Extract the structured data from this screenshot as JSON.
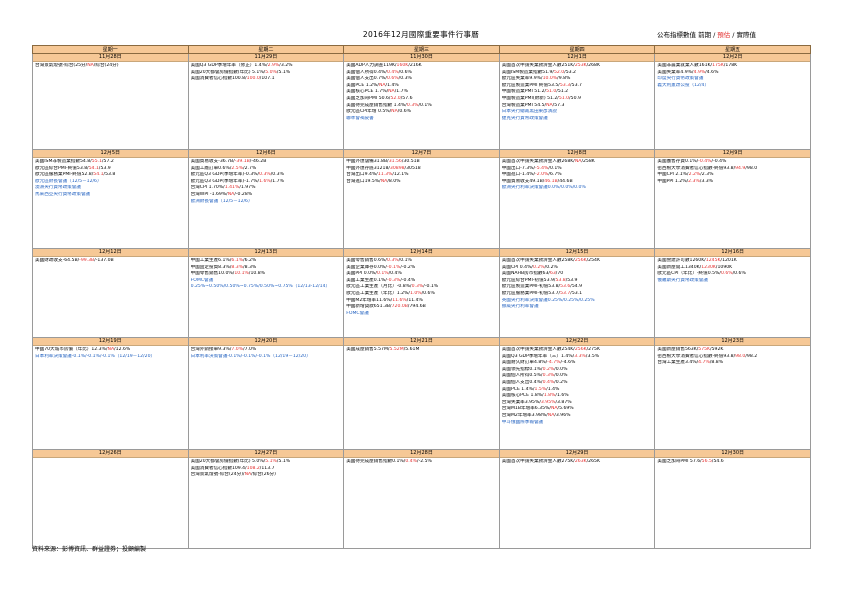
{
  "title": "2016年12月國際重要事件行事曆",
  "legend": {
    "prev": "公布指標數值 前期",
    "forecast": "預估",
    "actual": "實際值"
  },
  "weekdays": [
    "星期一",
    "星期二",
    "星期三",
    "星期四",
    "星期五"
  ],
  "weeks": [
    {
      "days": [
        {
          "date": "11月28日",
          "events": [
            [
              "台灣景氣燈號-綜合(25分/",
              {
                "f": "NA"
              },
              "/綜合(24分)"
            ]
          ]
        },
        {
          "date": "11月29日",
          "events": [
            [
              "美國Q3 GDP季增年率（修正）1.4%/",
              {
                "f": "2.9%"
              },
              "/3.2%"
            ],
            [
              "美國20大都會房價指數(年比) 5.1%/",
              {
                "f": "5.0%"
              },
              "/5.1%"
            ],
            [
              "美國消費者信心指數100.8/",
              {
                "f": "100.0"
              },
              "/107.1"
            ]
          ]
        },
        {
          "date": "11月30日",
          "events": [
            [
              "美國ADP人力調查119K/",
              {
                "f": "160K"
              },
              "/216K"
            ],
            [
              "美國個人所得0.4%/",
              {
                "f": "0.4%"
              },
              "/0.6%"
            ],
            [
              "美國個人支出0.7%/",
              {
                "f": "0.6%"
              },
              "/0.3%"
            ],
            [
              "美國PCE 1.2%/",
              {
                "f": "NA"
              },
              "/1.4%"
            ],
            [
              "美國核心PCE 1.7%/",
              {
                "f": "NA"
              },
              "/1.7%"
            ],
            [
              "美國芝加哥PMI 50.6/",
              {
                "f": "52.0"
              },
              "/57.6"
            ],
            [
              "美國待完成屋銷售指數 1.4%/",
              {
                "f": "0.3%"
              },
              "/0.1%"
            ],
            [
              "歐元區CPI年增 0.5%/",
              {
                "f": "NA"
              },
              "/0.6%"
            ],
            {
              "fx": "聯準會褐皮書"
            }
          ]
        },
        {
          "date": "12月1日",
          "events": [
            [
              "美國首次申請失業救濟金人數251K/",
              {
                "f": "253K"
              },
              "/268K"
            ],
            [
              "美國ISM製造業指數51.9/",
              {
                "f": "52.0"
              },
              "/53.2"
            ],
            [
              "歐元區失業率9.9%/",
              {
                "f": "10.0%"
              },
              "/9.8%"
            ],
            [
              "歐元區製造業PMI 終值53.5/",
              {
                "f": "53.3"
              },
              "/53.7"
            ],
            [
              "中國製造業PMI 51.2/",
              {
                "f": "51.0"
              },
              "/51.2"
            ],
            [
              "中國製造業PMI(財新) 51.2/",
              {
                "f": "51.0"
              },
              "/50.9"
            ],
            [
              "台灣製造業PMI 54.5/",
              {
                "f": "NA"
              },
              "/57.3"
            ],
            {
              "fx": "日本央行總裁黑田東彥演說"
            },
            {
              "fx": "捷克央行貨幣政策會議"
            }
          ]
        },
        {
          "date": "12月2日",
          "events": [
            [
              "美國非農業就業人數161K/",
              {
                "f": "175K"
              },
              "/178K"
            ],
            [
              "美國失業率4.9%/",
              {
                "f": "4.9%"
              },
              "/4.6%"
            ],
            {
              "fx": "印度央行貨幣政策會議"
            },
            {
              "fx": "義大利憲改公投（12/4）"
            }
          ]
        }
      ]
    },
    {
      "days": [
        {
          "date": "12月5日",
          "events": [
            [
              "美國ISM非製造業指數54.8/",
              {
                "f": "55.1"
              },
              "/57.2"
            ],
            [
              "歐元區綜合PMI-終值53.8/",
              {
                "f": "54.1"
              },
              "/53.9"
            ],
            [
              "歐元區服務業PMI-終值52.8/",
              {
                "f": "54.1"
              },
              "/53.8"
            ],
            {
              "fx": "歐元區財長會議（12/5－12/6）"
            },
            {
              "fx": "澳洲央行貨幣政策會議"
            },
            {
              "fx": "馬來西亞央行貨幣政策會議"
            }
          ]
        },
        {
          "date": "12月6日",
          "events": [
            [
              "美國貿易收支-36.7B/",
              {
                "f": "-39.1B"
              },
              "/-46.2B"
            ],
            [
              "美國工廠訂單0.6%/",
              {
                "f": "2.5%"
              },
              "/2.7%"
            ],
            [
              "歐元區Q3 GDP(季增年率)-0.3%/",
              {
                "f": "0.3%"
              },
              "/0.3%"
            ],
            [
              "歐元區Q3 GDP(季增年率)-1.7%/",
              {
                "f": "1.6%"
              },
              "/1.7%"
            ],
            [
              "台灣CPI 1.70%/",
              {
                "f": "1.41%"
              },
              "/1.97%"
            ],
            [
              "台灣WPI -1.69%/",
              {
                "f": "NA"
              },
              "/-0.28%"
            ],
            {
              "fx": "歐洲財長會議（12/5－12/6）"
            }
          ]
        },
        {
          "date": "12月7日",
          "events": [
            [
              "中國外匯儲備31.8B/",
              {
                "f": "31.56"
              },
              "/30.51B"
            ],
            [
              "中國外匯存底31218/",
              {
                "f": "30898"
              },
              "/30518"
            ],
            [
              "台灣出口9.4%/",
              {
                "f": "11.3%"
              },
              "/12.1%"
            ],
            [
              "台灣進口19.5%/",
              {
                "f": "NA"
              },
              "/8.0%"
            ]
          ]
        },
        {
          "date": "12月8日",
          "events": [
            [
              "美國首次申請失業救濟金人數268K/",
              {
                "f": "NA"
              },
              "/258K"
            ],
            [
              "中國出口-7.3%/",
              {
                "f": "-5.4%"
              },
              "/0.1%"
            ],
            [
              "中國進口-1.4%/",
              {
                "f": "-2.0%"
              },
              "/6.7%"
            ],
            [
              "中國貿易收支49.1B/",
              {
                "f": "46.1B"
              },
              "/44.6B"
            ],
            {
              "fx": "歐洲央行利率決策會議0.0%/0.0%/0.0%"
            }
          ]
        },
        {
          "date": "12月9日",
          "events": [
            [
              "美國躉售存貨0.1%/",
              {
                "f": "-0.4%"
              },
              "/-0.4%"
            ],
            [
              "密西根大學消費者信心指數-終值93.8/",
              {
                "f": "94.9"
              },
              "/98.0"
            ],
            [
              "中國CPI 2.1%/",
              {
                "f": "2.2%"
              },
              "/2.3%"
            ],
            [
              "中國PPI 1.2%/",
              {
                "f": "2.3%"
              },
              "/3.3%"
            ]
          ]
        }
      ]
    },
    {
      "days": [
        {
          "date": "12月12日",
          "events": [
            [
              "美國財政收支-64.5B/",
              {
                "f": "-99.3B"
              },
              "/-137.0B"
            ]
          ]
        },
        {
          "date": "12月13日",
          "events": [
            [
              "中國工業生產6.1%/",
              {
                "f": "6.1%"
              },
              "/6.2%"
            ],
            [
              "中國固定投資8.3%/",
              {
                "f": "8.3%"
              },
              "/8.3%"
            ],
            [
              "中國零售銷售10.0%/",
              {
                "f": "10.1%"
              },
              "/10.8%"
            ],
            {
              "fx": "FOMC會議"
            },
            {
              "fx": "0.25%~0.50%/0.50%~0.75%/0.50%~0.75%（12/13-12/14）"
            }
          ]
        },
        {
          "date": "12月14日",
          "events": [
            [
              "美國零售銷售0.6%/",
              {
                "f": "0.3%"
              },
              "/0.1%"
            ],
            [
              "美國企業庫存0.0%/",
              {
                "f": "-0.1%"
              },
              "/-0.2%"
            ],
            [
              "美國PPI 0.0%/",
              {
                "f": "0.1%"
              },
              "/0.4%"
            ],
            [
              "美國工業生產0.1%/",
              {
                "f": "-0.3%"
              },
              "/-0.4%"
            ],
            [
              "歐元區工業生產（月比）-0.8%/",
              {
                "f": "0.3%"
              },
              "/-0.1%"
            ],
            [
              "歐元區工業生產（年比）1.2%/",
              {
                "f": "1.0%"
              },
              "/0.6%"
            ],
            [
              "中國M2年增率11.6%/",
              {
                "f": "11.6%"
              },
              "/11.4%"
            ],
            [
              "中國新增貸款651.3B/",
              {
                "f": "720.0B"
              },
              "/794.6B"
            ],
            {
              "fx": "FOMC會議"
            }
          ]
        },
        {
          "date": "12月15日",
          "events": [
            [
              "美國首次申請失業救濟金人數258K/",
              {
                "f": "256K"
              },
              "/254K"
            ],
            [
              "美國CPI 0.4%/",
              {
                "f": "0.2%"
              },
              "/0.2%"
            ],
            [
              "美國NAHB房市指數63/",
              {
                "f": "63"
              },
              "/70"
            ],
            [
              "歐元區綜合PMI-初值53.9/",
              {
                "f": "53.8"
              },
              "/53.9"
            ],
            [
              "歐元區製造業PMI-初值53.8/",
              {
                "f": "53.6"
              },
              "/54.9"
            ],
            [
              "歐元區服務業PMI-初值53.7/",
              {
                "f": "53.7"
              },
              "/53.1"
            ],
            {
              "fx": "英國央行利率決策會議0.25%/0.25%/0.25%"
            },
            {
              "fx": "挪威央行利率會議"
            }
          ]
        },
        {
          "date": "12月16日",
          "events": [
            [
              "美國營建許可數1260K/",
              {
                "f": "1245K"
              },
              "/1201K"
            ],
            [
              "美國新屋開工1340K/",
              {
                "f": "1230K"
              },
              "/1090K"
            ],
            [
              "歐元區CPI（年比）-終值0.5%/",
              {
                "f": "0.6%"
              },
              "/0.6%"
            ],
            {
              "fx": "俄羅斯央行貨幣政策會議"
            }
          ]
        }
      ]
    },
    {
      "days": [
        {
          "date": "12月19日",
          "events": [
            [
              "中國70大城市房價（年比）12.3%/",
              {
                "f": "NA"
              },
              "/12.6%"
            ],
            {
              "fx": "日本利率決策會議-0.1%/-0.1%/-0.1%（12/19－12/20）"
            }
          ]
        },
        {
          "date": "12月20日",
          "events": [
            [
              "台灣外銷接單9.3%/",
              {
                "f": "7.0%"
              },
              "/7.0%"
            ],
            {
              "fx": "日本利率決策會議-0.1%/-0.1%/-0.1%（12/19－12/20）"
            }
          ]
        },
        {
          "date": "12月21日",
          "events": [
            [
              "美國成屋銷售5.57M/",
              {
                "f": "5.52M"
              },
              "/5.61M"
            ]
          ]
        },
        {
          "date": "12月22日",
          "events": [
            [
              "美國首次申請失業救濟金人數254K/",
              {
                "f": "256K"
              },
              "/275K"
            ],
            [
              "美國Q3 GDP季增年率（三）1.4%/",
              {
                "f": "3.3%"
              },
              "/3.5%"
            ],
            [
              "美國耐久財訂單4.8%/",
              {
                "f": "-4.7%"
              },
              "/-4.6%"
            ],
            [
              "美國領先指標0.1%/",
              {
                "f": "0.2%"
              },
              "/0.0%"
            ],
            [
              "美國個人所得0.5%/",
              {
                "f": "0.3%"
              },
              "/0.0%"
            ],
            [
              "美國個人支出0.4%/",
              {
                "f": "0.4%"
              },
              "/0.2%"
            ],
            [
              "美國PCE 1.4%/",
              {
                "f": "1.5%"
              },
              "/1.4%"
            ],
            [
              "美國核心PCE 1.8%/",
              {
                "f": "1.8%"
              },
              "/1.6%"
            ],
            [
              "台灣失業率3.95%/",
              {
                "f": "3.95%"
              },
              "/3.87%"
            ],
            [
              "台灣M1B年增率6.35%/",
              {
                "f": "NA"
              },
              "/5.69%"
            ],
            [
              "台灣M2年增率3.98%/",
              {
                "f": "NA"
              },
              "/3.96%"
            ],
            {
              "fx": "中斗俄國際季報會議"
            }
          ]
        },
        {
          "date": "12月23日",
          "events": [
            [
              "美國新屋銷售563K/",
              {
                "f": "575K"
              },
              "/592K"
            ],
            [
              "密西根大學消費者信心指數-終值93.8/",
              {
                "f": "98.0"
              },
              "/98.2"
            ],
            [
              "台灣工業生產3.4%/",
              {
                "f": "4.7%"
              },
              "/8.8%"
            ]
          ]
        }
      ]
    },
    {
      "days": [
        {
          "date": "12月26日",
          "events": []
        },
        {
          "date": "12月27日",
          "events": [
            [
              "美國20大都會房價指數(年比) 5.0%/",
              {
                "f": "5.1%"
              },
              "/5.1%"
            ],
            [
              "美國消費者信心指數109.4/",
              {
                "f": "108.2"
              },
              "/113.7"
            ],
            [
              "台灣景氣燈號-綜合(24分)/",
              {
                "f": "NA"
              },
              "/綜合(26分)"
            ]
          ]
        },
        {
          "date": "12月28日",
          "events": [
            [
              "美國待完成屋銷售指數0.1%/",
              {
                "f": "0.4%"
              },
              "/-2.5%"
            ]
          ]
        },
        {
          "date": "12月29日",
          "events": [
            [
              "美國首次申請失業救濟金人數275K/",
              {
                "f": "263K"
              },
              "/265K"
            ]
          ]
        },
        {
          "date": "12月30日",
          "events": [
            [
              "美國芝加哥PMI 57.6/",
              {
                "f": "56.5"
              },
              "/54.6"
            ]
          ]
        }
      ]
    }
  ],
  "source": "資料來源：彭博資訊、群益證券；投顧編製"
}
